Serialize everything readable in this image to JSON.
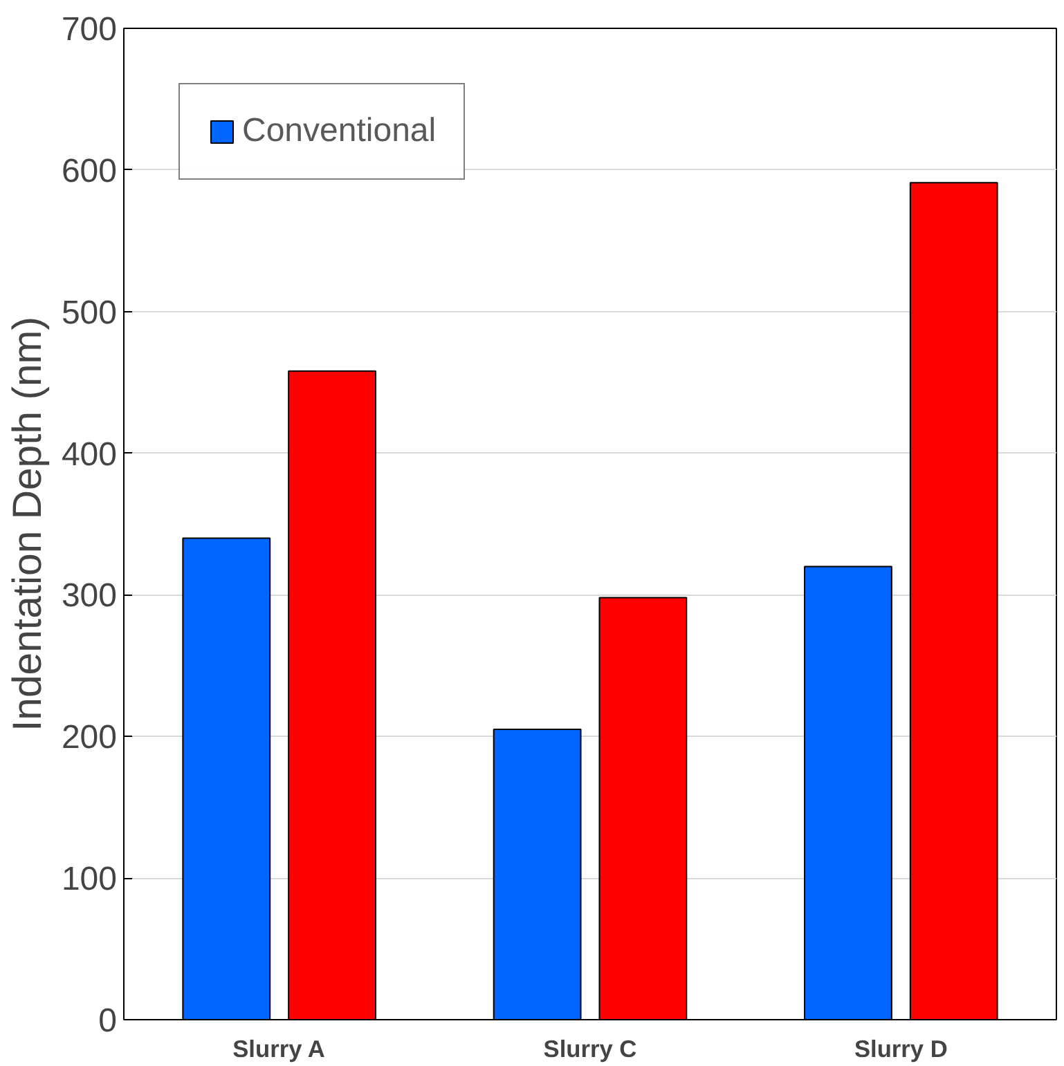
{
  "chart_data": {
    "type": "bar",
    "ylabel": "Indentation Depth (nm)",
    "categories": [
      "Slurry A",
      "Slurry C",
      "Slurry D"
    ],
    "series": [
      {
        "name": "Conventional",
        "color": "#0066ff",
        "values": [
          340,
          205,
          320
        ]
      },
      {
        "color": "#ff0000",
        "values": [
          458,
          298,
          591
        ]
      }
    ],
    "ylim": [
      0,
      700
    ],
    "yticks": [
      0,
      100,
      200,
      300,
      400,
      500,
      600,
      700
    ],
    "grid": "y",
    "legend": "top left"
  }
}
